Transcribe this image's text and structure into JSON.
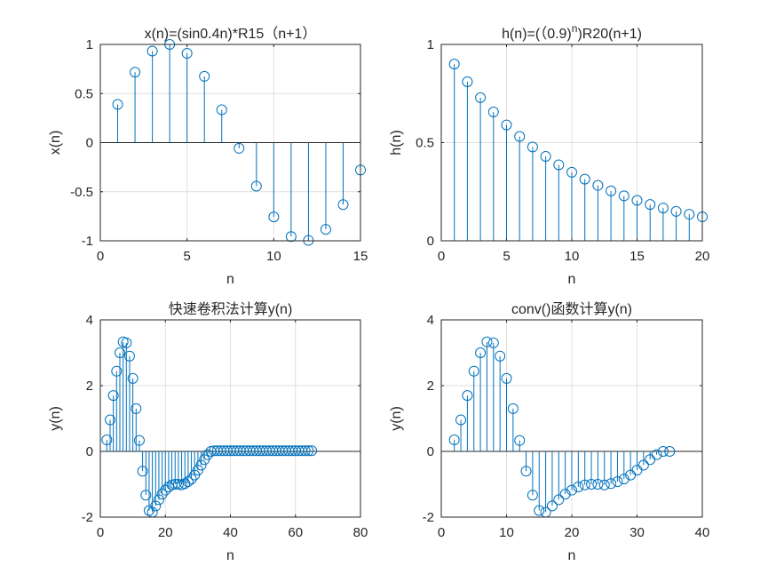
{
  "chart_data": [
    {
      "id": "tl",
      "type": "stem",
      "title_parts": [
        {
          "t": "x(n)=(sin0.4n)*R15（n+1）",
          "sup": false
        }
      ],
      "xlabel": "n",
      "ylabel": "x(n)",
      "xlim": [
        0,
        15
      ],
      "ylim": [
        -1,
        1
      ],
      "xticks": [
        0,
        5,
        10,
        15
      ],
      "yticks": [
        -1,
        -0.5,
        0,
        0.5,
        1
      ],
      "xtick_labels": [
        "0",
        "5",
        "10",
        "15"
      ],
      "ytick_labels": [
        "-1",
        "-0.5",
        "0",
        "0.5",
        "1"
      ],
      "grid": true,
      "x": [
        1,
        2,
        3,
        4,
        5,
        6,
        7,
        8,
        9,
        10,
        11,
        12,
        13,
        14,
        15
      ],
      "y": [
        0.389,
        0.717,
        0.932,
        1.0,
        0.909,
        0.675,
        0.335,
        -0.058,
        -0.443,
        -0.757,
        -0.957,
        -0.996,
        -0.883,
        -0.631,
        -0.279
      ]
    },
    {
      "id": "tr",
      "type": "stem",
      "title_parts": [
        {
          "t": "h(n)=(（0.9)",
          "sup": false
        },
        {
          "t": "n",
          "sup": true
        },
        {
          "t": ")R20(n+1)",
          "sup": false
        }
      ],
      "xlabel": "n",
      "ylabel": "h(n)",
      "xlim": [
        0,
        20
      ],
      "ylim": [
        0,
        1
      ],
      "xticks": [
        0,
        5,
        10,
        15,
        20
      ],
      "yticks": [
        0,
        0.5,
        1
      ],
      "xtick_labels": [
        "0",
        "5",
        "10",
        "15",
        "20"
      ],
      "ytick_labels": [
        "0",
        "0.5",
        "1"
      ],
      "grid": true,
      "x": [
        1,
        2,
        3,
        4,
        5,
        6,
        7,
        8,
        9,
        10,
        11,
        12,
        13,
        14,
        15,
        16,
        17,
        18,
        19,
        20
      ],
      "y": [
        0.9,
        0.81,
        0.729,
        0.656,
        0.59,
        0.531,
        0.478,
        0.43,
        0.387,
        0.349,
        0.314,
        0.282,
        0.254,
        0.229,
        0.206,
        0.185,
        0.167,
        0.15,
        0.135,
        0.122
      ]
    },
    {
      "id": "bl",
      "type": "stem",
      "title_parts": [
        {
          "t": "快速卷积法计算y(n)",
          "sup": false
        }
      ],
      "xlabel": "n",
      "ylabel": "y(n)",
      "xlim": [
        0,
        80
      ],
      "ylim": [
        -2,
        4
      ],
      "xticks": [
        0,
        20,
        40,
        60,
        80
      ],
      "yticks": [
        -2,
        0,
        2,
        4
      ],
      "xtick_labels": [
        "0",
        "20",
        "40",
        "60",
        "80"
      ],
      "ytick_labels": [
        "-2",
        "0",
        "2",
        "4"
      ],
      "grid": true,
      "x": [
        2,
        3,
        4,
        5,
        6,
        7,
        8,
        9,
        10,
        11,
        12,
        13,
        14,
        15,
        16,
        17,
        18,
        19,
        20,
        21,
        22,
        23,
        24,
        25,
        26,
        27,
        28,
        29,
        30,
        31,
        32,
        33,
        34,
        35,
        36,
        37,
        38,
        39,
        40,
        41,
        42,
        43,
        44,
        45,
        46,
        47,
        48,
        49,
        50,
        51,
        52,
        53,
        54,
        55,
        56,
        57,
        58,
        59,
        60,
        61,
        62,
        63,
        64,
        65
      ],
      "y": [
        0.35,
        0.96,
        1.7,
        2.44,
        3.0,
        3.33,
        3.3,
        2.9,
        2.22,
        1.3,
        0.33,
        -0.6,
        -1.33,
        -1.8,
        -1.85,
        -1.66,
        -1.47,
        -1.3,
        -1.18,
        -1.08,
        -1.02,
        -1.0,
        -1.0,
        -1.02,
        -0.98,
        -0.92,
        -0.84,
        -0.72,
        -0.57,
        -0.42,
        -0.25,
        -0.1,
        0.0,
        0.02,
        0.02,
        0.02,
        0.02,
        0.02,
        0.02,
        0.02,
        0.02,
        0.02,
        0.02,
        0.02,
        0.02,
        0.02,
        0.02,
        0.02,
        0.02,
        0.02,
        0.02,
        0.02,
        0.02,
        0.02,
        0.02,
        0.02,
        0.02,
        0.02,
        0.02,
        0.02,
        0.02,
        0.02,
        0.02,
        0.02
      ]
    },
    {
      "id": "br",
      "type": "stem",
      "title_parts": [
        {
          "t": "conv()函数计算y(n)",
          "sup": false
        }
      ],
      "xlabel": "n",
      "ylabel": "y(n)",
      "xlim": [
        0,
        40
      ],
      "ylim": [
        -2,
        4
      ],
      "xticks": [
        0,
        10,
        20,
        30,
        40
      ],
      "yticks": [
        -2,
        0,
        2,
        4
      ],
      "xtick_labels": [
        "0",
        "10",
        "20",
        "30",
        "40"
      ],
      "ytick_labels": [
        "-2",
        "0",
        "2",
        "4"
      ],
      "grid": true,
      "x": [
        2,
        3,
        4,
        5,
        6,
        7,
        8,
        9,
        10,
        11,
        12,
        13,
        14,
        15,
        16,
        17,
        18,
        19,
        20,
        21,
        22,
        23,
        24,
        25,
        26,
        27,
        28,
        29,
        30,
        31,
        32,
        33,
        34,
        35
      ],
      "y": [
        0.35,
        0.96,
        1.7,
        2.44,
        3.0,
        3.33,
        3.3,
        2.9,
        2.22,
        1.3,
        0.33,
        -0.6,
        -1.33,
        -1.8,
        -1.85,
        -1.66,
        -1.47,
        -1.3,
        -1.18,
        -1.08,
        -1.02,
        -1.0,
        -1.0,
        -1.02,
        -0.98,
        -0.92,
        -0.84,
        -0.72,
        -0.57,
        -0.42,
        -0.25,
        -0.1,
        0.0,
        0.0
      ]
    }
  ],
  "colors": {
    "stem": "#0072BD",
    "axis": "#262626",
    "grid": "#dfdfdf",
    "background": "#ffffff"
  }
}
